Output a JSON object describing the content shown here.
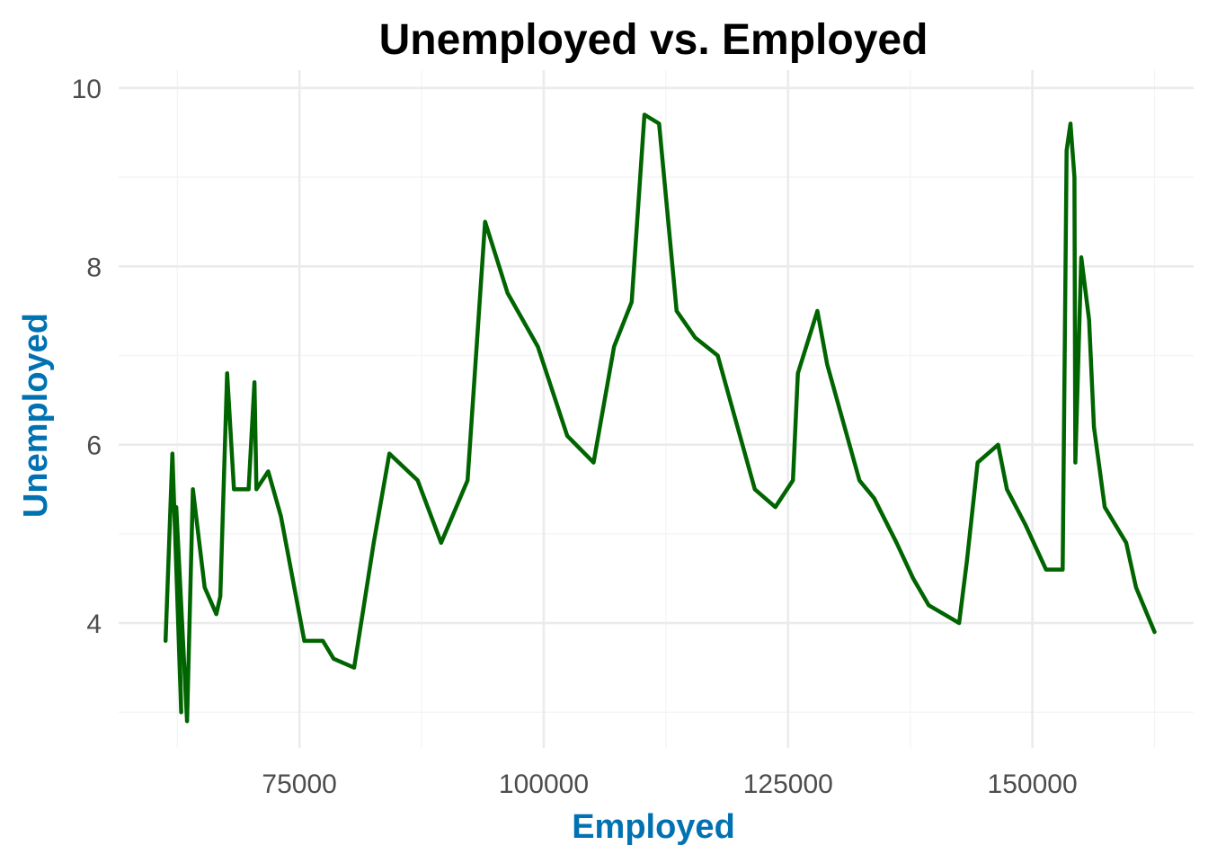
{
  "chart_data": {
    "type": "line",
    "title": "Unemployed vs. Employed",
    "xlabel": "Employed",
    "ylabel": "Unemployed",
    "xlim": [
      56500,
      166500
    ],
    "ylim": [
      2.6,
      10.2
    ],
    "x_ticks": [
      75000,
      100000,
      125000,
      150000
    ],
    "x_tick_labels": [
      "75000",
      "100000",
      "125000",
      "150000"
    ],
    "x_minor_ticks": [
      62500,
      87500,
      112500,
      137500,
      162500
    ],
    "y_ticks": [
      4,
      6,
      8,
      10
    ],
    "y_tick_labels": [
      "4",
      "6",
      "8",
      "10"
    ],
    "y_minor_ticks": [
      3,
      5,
      7,
      9
    ],
    "grid": true,
    "legend": "none",
    "line_color": "#006400",
    "axis_title_color": "#0072b2",
    "series": [
      {
        "points": [
          [
            61300,
            3.8
          ],
          [
            62000,
            5.9
          ],
          [
            62900,
            3.0
          ],
          [
            62400,
            5.3
          ],
          [
            63500,
            2.9
          ],
          [
            64100,
            5.5
          ],
          [
            65300,
            4.4
          ],
          [
            66500,
            4.1
          ],
          [
            66900,
            4.3
          ],
          [
            67600,
            6.8
          ],
          [
            68300,
            5.5
          ],
          [
            69800,
            5.5
          ],
          [
            70400,
            6.7
          ],
          [
            70600,
            5.5
          ],
          [
            71800,
            5.7
          ],
          [
            73100,
            5.2
          ],
          [
            75500,
            3.8
          ],
          [
            77400,
            3.8
          ],
          [
            78500,
            3.6
          ],
          [
            80600,
            3.5
          ],
          [
            82600,
            4.9
          ],
          [
            84200,
            5.9
          ],
          [
            87100,
            5.6
          ],
          [
            89500,
            4.9
          ],
          [
            92200,
            5.6
          ],
          [
            94000,
            8.5
          ],
          [
            96300,
            7.7
          ],
          [
            99400,
            7.1
          ],
          [
            102400,
            6.1
          ],
          [
            105100,
            5.8
          ],
          [
            107200,
            7.1
          ],
          [
            109000,
            7.6
          ],
          [
            110300,
            9.7
          ],
          [
            111800,
            9.6
          ],
          [
            113600,
            7.5
          ],
          [
            115500,
            7.2
          ],
          [
            117800,
            7.0
          ],
          [
            121600,
            5.5
          ],
          [
            123700,
            5.3
          ],
          [
            125500,
            5.6
          ],
          [
            126000,
            6.8
          ],
          [
            128000,
            7.5
          ],
          [
            129000,
            6.9
          ],
          [
            132300,
            5.6
          ],
          [
            133800,
            5.4
          ],
          [
            136100,
            4.9
          ],
          [
            137800,
            4.5
          ],
          [
            139400,
            4.2
          ],
          [
            142500,
            4.0
          ],
          [
            143300,
            4.7
          ],
          [
            144400,
            5.8
          ],
          [
            146500,
            6.0
          ],
          [
            147400,
            5.5
          ],
          [
            149300,
            5.1
          ],
          [
            151400,
            4.6
          ],
          [
            153100,
            4.6
          ],
          [
            153500,
            9.3
          ],
          [
            153900,
            9.6
          ],
          [
            154300,
            9.0
          ],
          [
            154400,
            5.8
          ],
          [
            155000,
            8.1
          ],
          [
            155800,
            7.4
          ],
          [
            156300,
            6.2
          ],
          [
            157400,
            5.3
          ],
          [
            159600,
            4.9
          ],
          [
            160600,
            4.4
          ],
          [
            162500,
            3.9
          ]
        ]
      }
    ]
  }
}
